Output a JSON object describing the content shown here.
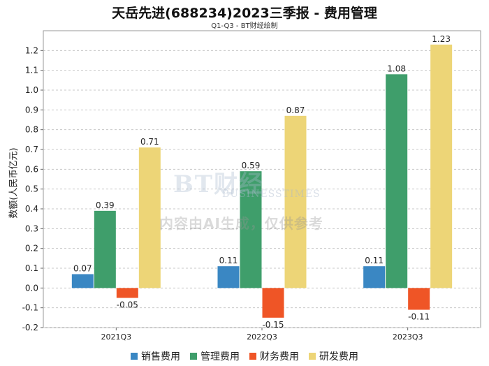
{
  "chart_data": {
    "type": "bar",
    "title": "天岳先进(688234)2023三季报 - 费用管理",
    "subtitle": "Q1-Q3 - BT财经绘制",
    "xlabel": "",
    "ylabel": "数额(人民币亿元)",
    "categories": [
      "2021Q3",
      "2022Q3",
      "2023Q3"
    ],
    "ylim": [
      -0.2,
      1.3
    ],
    "yticks": [
      "-0.2",
      "-0.1",
      "0.0",
      "0.1",
      "0.2",
      "0.3",
      "0.4",
      "0.5",
      "0.6",
      "0.7",
      "0.8",
      "0.9",
      "1.0",
      "1.1",
      "1.2"
    ],
    "grid": true,
    "legend_position": "bottom",
    "series": [
      {
        "name": "销售费用",
        "color": "#3a87c3",
        "values": [
          0.07,
          0.11,
          0.11
        ],
        "labels": [
          "0.07",
          "0.11",
          "0.11"
        ]
      },
      {
        "name": "管理费用",
        "color": "#3f9e6b",
        "values": [
          0.39,
          0.59,
          1.08
        ],
        "labels": [
          "0.39",
          "0.59",
          "1.08"
        ]
      },
      {
        "name": "财务费用",
        "color": "#ef5526",
        "values": [
          -0.05,
          -0.15,
          -0.11
        ],
        "labels": [
          "-0.05",
          "-0.15",
          "-0.11"
        ]
      },
      {
        "name": "研发费用",
        "color": "#edd577",
        "values": [
          0.71,
          0.87,
          1.23
        ],
        "labels": [
          "0.71",
          "0.87",
          "1.23"
        ]
      }
    ]
  },
  "watermark": {
    "logo": "BT财经",
    "sub": "BUSINESSTIMES",
    "text": "内容由AI生成，仅供参考"
  }
}
